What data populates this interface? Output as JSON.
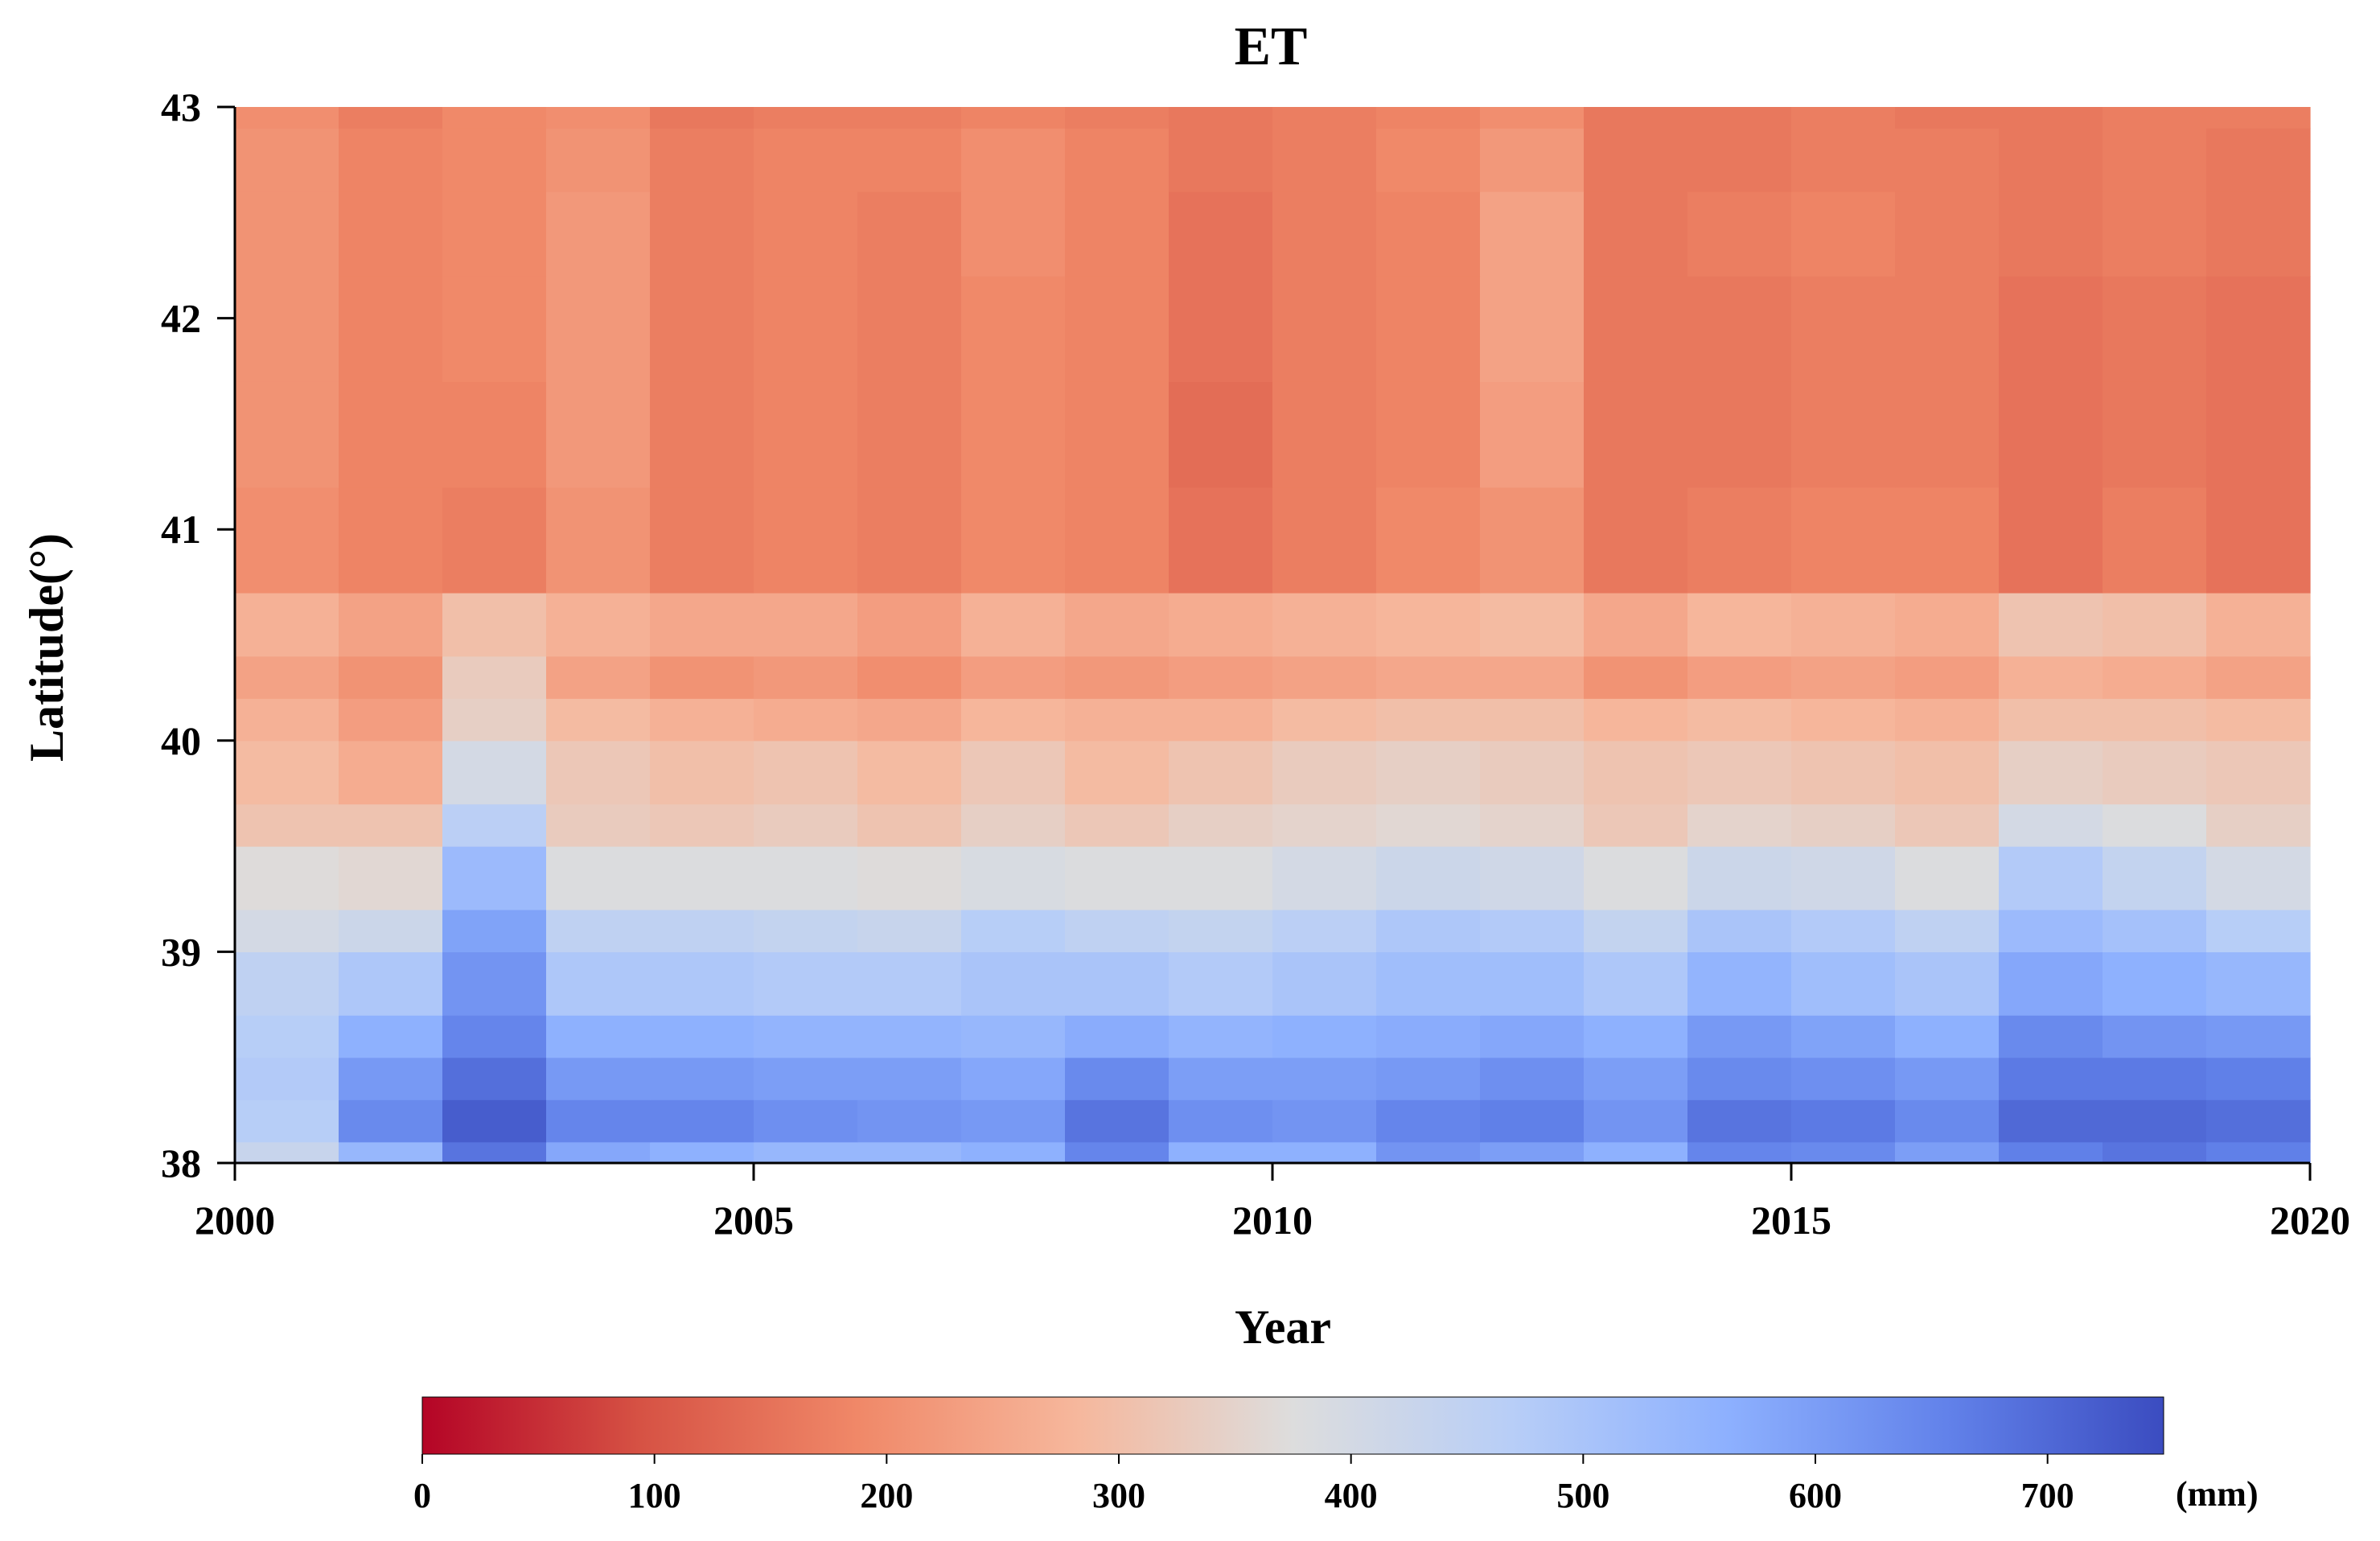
{
  "chart_data": {
    "type": "heatmap",
    "title": "ET",
    "xlabel": "Year",
    "ylabel": "Latitude(°)",
    "xlim": [
      2000,
      2020
    ],
    "ylim": [
      38,
      43
    ],
    "x_ticks": [
      2000,
      2005,
      2010,
      2015,
      2020
    ],
    "x_tick_labels": [
      "2000",
      "2005",
      "2010",
      "2015",
      "2020"
    ],
    "y_ticks": [
      38,
      39,
      40,
      41,
      42,
      43
    ],
    "y_tick_labels": [
      "38",
      "39",
      "40",
      "41",
      "42",
      "43"
    ],
    "years": [
      2000,
      2001,
      2002,
      2003,
      2004,
      2005,
      2006,
      2007,
      2008,
      2009,
      2010,
      2011,
      2012,
      2013,
      2014,
      2015,
      2016,
      2017,
      2018,
      2019
    ],
    "latitude_band_edges": [
      38.0,
      38.1,
      38.3,
      38.5,
      38.7,
      39.0,
      39.2,
      39.5,
      39.7,
      40.0,
      40.2,
      40.4,
      40.7,
      41.2,
      41.7,
      42.2,
      42.6,
      42.9,
      43.0
    ],
    "values_mm": [
      [
        430,
        540,
        680,
        580,
        560,
        540,
        540,
        560,
        650,
        560,
        560,
        620,
        600,
        560,
        650,
        640,
        600,
        660,
        680,
        660
      ],
      [
        470,
        640,
        720,
        650,
        650,
        630,
        620,
        610,
        680,
        630,
        620,
        650,
        660,
        620,
        680,
        670,
        640,
        700,
        700,
        690
      ],
      [
        480,
        610,
        690,
        610,
        610,
        600,
        600,
        580,
        640,
        600,
        600,
        610,
        630,
        600,
        640,
        630,
        610,
        670,
        670,
        660
      ],
      [
        470,
        560,
        650,
        560,
        560,
        550,
        550,
        540,
        570,
        550,
        560,
        570,
        580,
        560,
        610,
        590,
        560,
        640,
        620,
        610
      ],
      [
        450,
        490,
        620,
        490,
        490,
        480,
        480,
        500,
        500,
        480,
        500,
        520,
        520,
        490,
        550,
        520,
        500,
        580,
        560,
        540
      ],
      [
        400,
        420,
        590,
        450,
        450,
        440,
        430,
        470,
        450,
        440,
        460,
        490,
        480,
        440,
        500,
        480,
        450,
        530,
        510,
        470
      ],
      [
        370,
        360,
        530,
        380,
        380,
        380,
        370,
        390,
        380,
        380,
        400,
        420,
        410,
        380,
        420,
        410,
        380,
        480,
        440,
        400
      ],
      [
        310,
        310,
        460,
        330,
        320,
        330,
        310,
        340,
        320,
        340,
        350,
        360,
        350,
        320,
        350,
        340,
        320,
        400,
        380,
        340
      ],
      [
        290,
        260,
        400,
        320,
        300,
        310,
        290,
        320,
        290,
        310,
        330,
        340,
        330,
        310,
        320,
        310,
        300,
        340,
        330,
        320
      ],
      [
        270,
        230,
        340,
        290,
        270,
        260,
        250,
        280,
        270,
        270,
        290,
        300,
        300,
        280,
        290,
        280,
        270,
        300,
        300,
        290
      ],
      [
        240,
        210,
        330,
        240,
        210,
        220,
        200,
        230,
        220,
        230,
        240,
        250,
        250,
        210,
        230,
        240,
        230,
        270,
        260,
        240
      ],
      [
        270,
        240,
        300,
        270,
        250,
        250,
        230,
        270,
        250,
        260,
        270,
        280,
        290,
        250,
        280,
        270,
        260,
        310,
        300,
        270
      ],
      [
        200,
        180,
        170,
        210,
        170,
        180,
        170,
        190,
        180,
        150,
        170,
        190,
        210,
        160,
        170,
        180,
        180,
        150,
        170,
        150
      ],
      [
        210,
        180,
        180,
        220,
        170,
        180,
        170,
        190,
        180,
        140,
        170,
        180,
        230,
        160,
        160,
        170,
        170,
        150,
        160,
        150
      ],
      [
        210,
        180,
        190,
        220,
        170,
        180,
        170,
        190,
        180,
        150,
        170,
        180,
        240,
        160,
        160,
        170,
        170,
        150,
        160,
        150
      ],
      [
        210,
        180,
        190,
        220,
        170,
        180,
        170,
        200,
        180,
        150,
        170,
        180,
        240,
        160,
        170,
        180,
        170,
        160,
        170,
        160
      ],
      [
        210,
        180,
        190,
        210,
        170,
        180,
        180,
        200,
        180,
        160,
        170,
        190,
        220,
        160,
        160,
        170,
        170,
        160,
        170,
        160
      ],
      [
        200,
        170,
        190,
        200,
        160,
        170,
        170,
        180,
        170,
        160,
        170,
        180,
        200,
        160,
        160,
        170,
        160,
        160,
        170,
        170
      ]
    ],
    "colorbar": {
      "colormap": "coolwarm_r",
      "min": 0,
      "max": 750,
      "ticks": [
        0,
        100,
        200,
        300,
        400,
        500,
        600,
        700
      ],
      "tick_labels": [
        "0",
        "100",
        "200",
        "300",
        "400",
        "500",
        "600",
        "700"
      ],
      "unit": "(mm)",
      "position": "bottom"
    }
  }
}
